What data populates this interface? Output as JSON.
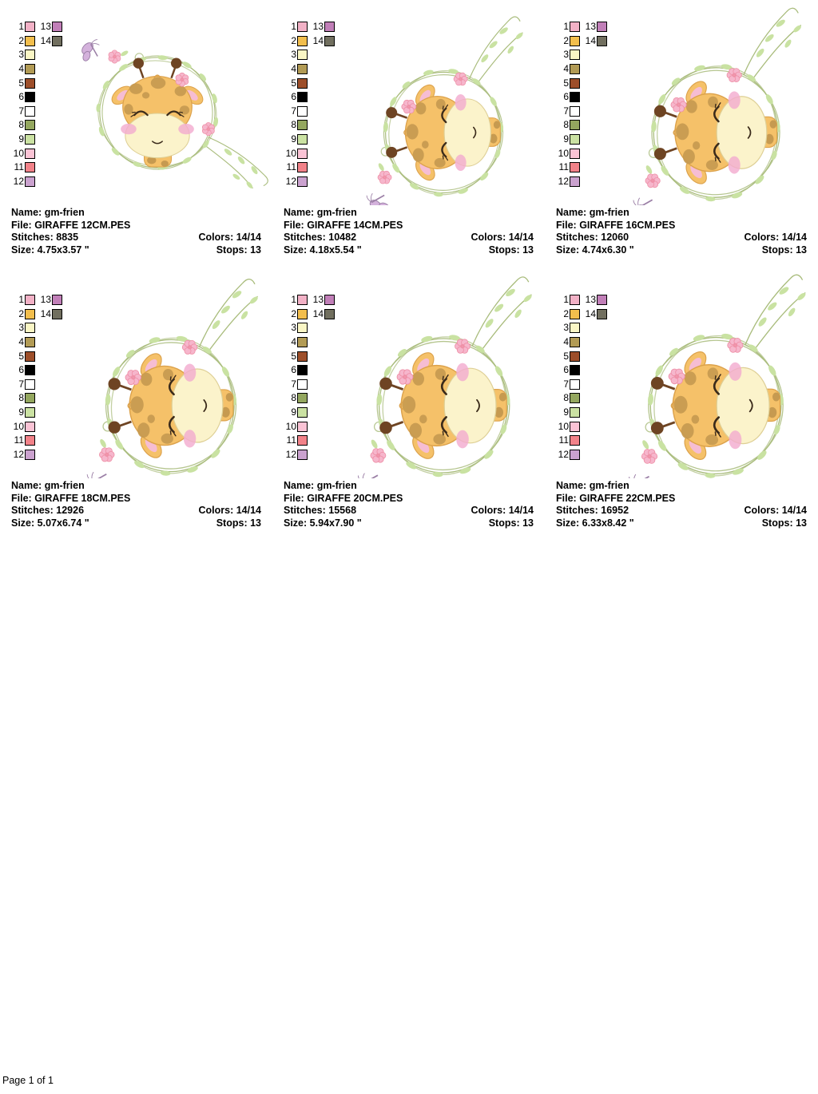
{
  "page": {
    "footer": "Page 1 of 1"
  },
  "labels": {
    "name": "Name:",
    "file": "File:",
    "stitches": "Stitches:",
    "size": "Size:",
    "colors": "Colors:",
    "stops": "Stops:"
  },
  "palette": {
    "entries": [
      {
        "num": "1",
        "color": "#F2B1C6"
      },
      {
        "num": "2",
        "color": "#F2BE4D"
      },
      {
        "num": "3",
        "color": "#FAF6C5"
      },
      {
        "num": "4",
        "color": "#B29B55"
      },
      {
        "num": "5",
        "color": "#9D4E2A"
      },
      {
        "num": "6",
        "color": "#000000"
      },
      {
        "num": "7",
        "color": "#FFFFFF"
      },
      {
        "num": "8",
        "color": "#94A75F"
      },
      {
        "num": "9",
        "color": "#CBE2A3"
      },
      {
        "num": "10",
        "color": "#FAC3D5"
      },
      {
        "num": "11",
        "color": "#F28289"
      },
      {
        "num": "12",
        "color": "#CBA2CF"
      },
      {
        "num": "13",
        "color": "#C17FB8"
      },
      {
        "num": "14",
        "color": "#716F5F"
      }
    ]
  },
  "art_colors": {
    "wreath": "#A9BC7C",
    "leaf": "#C9E2A2",
    "flower": "#F6B6CC",
    "flowerEdge": "#EE8FA6",
    "bfly": "#D4B2DC",
    "bflyEdge": "#9B7FA6",
    "body": "#F5C169",
    "bodyEdge": "#DCA24C",
    "spot": "#C69A50",
    "muzzle": "#FBF3CB",
    "muzzleEdge": "#DECF95",
    "cheek": "#F2AACE",
    "earInner": "#F6BDD3",
    "horn": "#6E4423",
    "dark": "#3A2A1A"
  },
  "cells": [
    {
      "name": "gm-frien",
      "file": "GIRAFFE 12CM.PES",
      "stitches": "8835",
      "size": "4.75x3.57 \"",
      "colors": "14/14",
      "stops": "13"
    },
    {
      "name": "gm-frien",
      "file": "GIRAFFE 14CM.PES",
      "stitches": "10482",
      "size": "4.18x5.54 \"",
      "colors": "14/14",
      "stops": "13"
    },
    {
      "name": "gm-frien",
      "file": "GIRAFFE 16CM.PES",
      "stitches": "12060",
      "size": "4.74x6.30 \"",
      "colors": "14/14",
      "stops": "13"
    },
    {
      "name": "gm-frien",
      "file": "GIRAFFE 18CM.PES",
      "stitches": "12926",
      "size": "5.07x6.74 \"",
      "colors": "14/14",
      "stops": "13"
    },
    {
      "name": "gm-frien",
      "file": "GIRAFFE 20CM.PES",
      "stitches": "15568",
      "size": "5.94x7.90 \"",
      "colors": "14/14",
      "stops": "13"
    },
    {
      "name": "gm-frien",
      "file": "GIRAFFE 22CM.PES",
      "stitches": "16952",
      "size": "6.33x8.42 \"",
      "colors": "14/14",
      "stops": "13"
    }
  ]
}
